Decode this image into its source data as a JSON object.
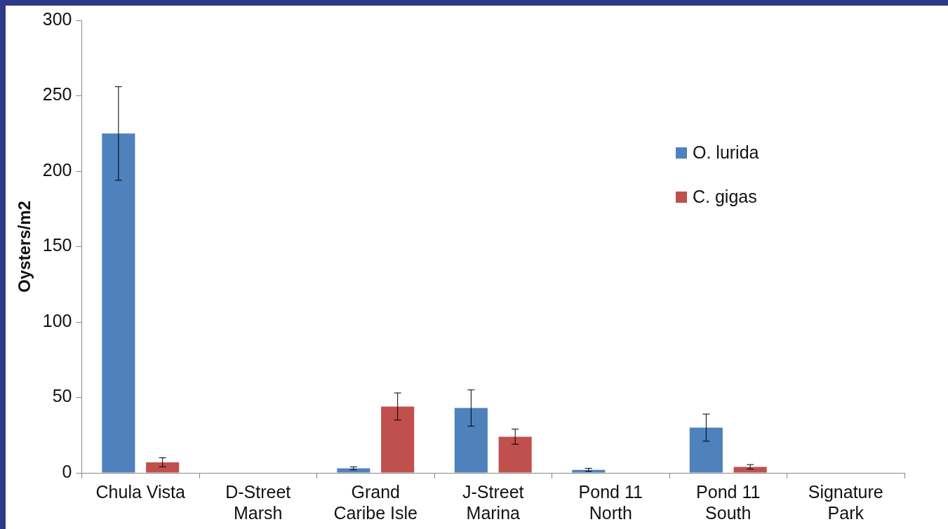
{
  "chart_data": {
    "type": "bar",
    "ylabel": "Oysters/m2",
    "categories": [
      "Chula Vista",
      "D-Street Marsh",
      "Grand Caribe Isle",
      "J-Street Marina",
      "Pond 11 North",
      "Pond 11 South",
      "Signature Park"
    ],
    "series": [
      {
        "name": "O. lurida",
        "color": "#4f81bd",
        "values": [
          225,
          0,
          3,
          43,
          2,
          30,
          0
        ],
        "errors": [
          31,
          null,
          1,
          12,
          1,
          9,
          null
        ]
      },
      {
        "name": "C. gigas",
        "color": "#c0504d",
        "values": [
          7,
          0,
          44,
          24,
          0,
          4,
          0
        ],
        "errors": [
          3,
          null,
          9,
          5,
          null,
          1.5,
          null
        ]
      }
    ],
    "ylim": [
      0,
      300
    ],
    "yticks": [
      0,
      50,
      100,
      150,
      200,
      250,
      300
    ],
    "grid": false,
    "legend": "top right"
  }
}
